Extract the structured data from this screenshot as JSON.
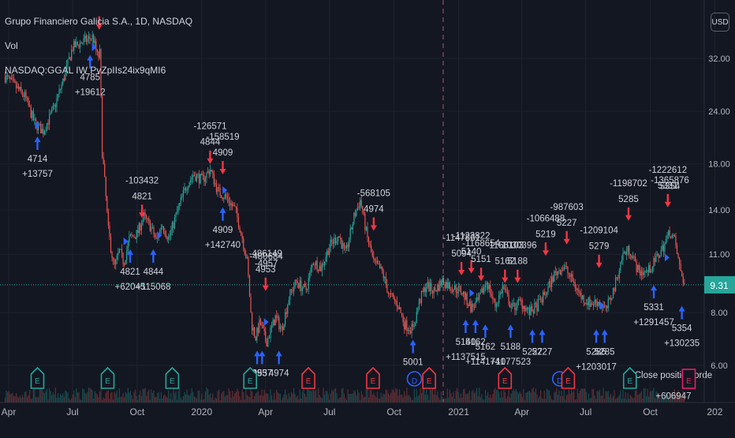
{
  "legend": {
    "symbol_line": "Grupo Financiero Galicia S.A., 1D, NASDAQ",
    "vol_label": "Vol",
    "script_line": "NASDAQ:GGAL IW PvZpIIs24ix9qMI6"
  },
  "currency_badge": "USD",
  "colors": {
    "background": "#131722",
    "up": "#26a69a",
    "down": "#ef5350",
    "buy_arrow": "#2962ff",
    "sell_arrow": "#f23645",
    "last_price": "#26a69a",
    "dividend": "#2962ff",
    "earnings_past": "#f23645",
    "earnings_future": "#e91e63"
  },
  "chart_data": {
    "type": "candlestick",
    "y_scale": "log",
    "y_ticks": [
      6.0,
      8.0,
      11.0,
      14.0,
      18.0,
      24.0,
      32.0
    ],
    "y_tick_labels": [
      "6.00",
      "8.00",
      "11.00",
      "14.00",
      "18.00",
      "24.00",
      "32.00"
    ],
    "x_tick_labels": [
      "Apr",
      "Jul",
      "Oct",
      "2020",
      "Apr",
      "Jul",
      "Oct",
      "2021",
      "Apr",
      "Jul",
      "Oct",
      "202"
    ],
    "last_price": "9.31",
    "price_path": [
      [
        "2019-03-27",
        29.0
      ],
      [
        "2019-04-10",
        27.5
      ],
      [
        "2019-04-24",
        26.0
      ],
      [
        "2019-05-08",
        22.5
      ],
      [
        "2019-05-20",
        21.5
      ],
      [
        "2019-06-05",
        24.5
      ],
      [
        "2019-06-18",
        28.5
      ],
      [
        "2019-07-01",
        34.0
      ],
      [
        "2019-07-15",
        35.0
      ],
      [
        "2019-07-30",
        36.0
      ],
      [
        "2019-08-06",
        32.0
      ],
      [
        "2019-08-09",
        33.0
      ],
      [
        "2019-08-12",
        19.5
      ],
      [
        "2019-08-15",
        17.0
      ],
      [
        "2019-08-21",
        12.5
      ],
      [
        "2019-08-29",
        10.2
      ],
      [
        "2019-09-06",
        11.2
      ],
      [
        "2019-09-12",
        10.5
      ],
      [
        "2019-09-20",
        12.0
      ],
      [
        "2019-10-01",
        12.3
      ],
      [
        "2019-10-10",
        13.5
      ],
      [
        "2019-10-20",
        12.8
      ],
      [
        "2019-10-29",
        11.8
      ],
      [
        "2019-11-05",
        13.0
      ],
      [
        "2019-11-15",
        12.0
      ],
      [
        "2019-11-28",
        14.0
      ],
      [
        "2019-12-10",
        16.0
      ],
      [
        "2019-12-20",
        17.0
      ],
      [
        "2020-01-02",
        16.5
      ],
      [
        "2020-01-13",
        17.5
      ],
      [
        "2020-01-24",
        15.5
      ],
      [
        "2020-02-05",
        15.0
      ],
      [
        "2020-02-18",
        14.0
      ],
      [
        "2020-02-28",
        12.0
      ],
      [
        "2020-03-06",
        10.5
      ],
      [
        "2020-03-12",
        7.5
      ],
      [
        "2020-03-18",
        7.0
      ],
      [
        "2020-03-24",
        7.6
      ],
      [
        "2020-04-02",
        6.8
      ],
      [
        "2020-04-15",
        7.8
      ],
      [
        "2020-04-24",
        7.3
      ],
      [
        "2020-05-05",
        8.8
      ],
      [
        "2020-05-15",
        9.5
      ],
      [
        "2020-05-28",
        9.0
      ],
      [
        "2020-06-08",
        10.6
      ],
      [
        "2020-06-19",
        10.2
      ],
      [
        "2020-07-01",
        11.5
      ],
      [
        "2020-07-14",
        12.2
      ],
      [
        "2020-07-24",
        11.0
      ],
      [
        "2020-08-05",
        13.5
      ],
      [
        "2020-08-14",
        14.8
      ],
      [
        "2020-08-24",
        12.0
      ],
      [
        "2020-09-02",
        10.5
      ],
      [
        "2020-09-14",
        10.0
      ],
      [
        "2020-09-24",
        8.8
      ],
      [
        "2020-10-06",
        8.4
      ],
      [
        "2020-10-16",
        7.5
      ],
      [
        "2020-10-28",
        7.3
      ],
      [
        "2020-11-06",
        8.5
      ],
      [
        "2020-11-16",
        9.3
      ],
      [
        "2020-11-27",
        9.0
      ],
      [
        "2020-12-09",
        9.5
      ],
      [
        "2020-12-22",
        9.2
      ],
      [
        "2021-01-05",
        9.0
      ],
      [
        "2021-01-19",
        8.2
      ],
      [
        "2021-01-29",
        8.5
      ],
      [
        "2021-02-10",
        9.5
      ],
      [
        "2021-02-22",
        8.3
      ],
      [
        "2021-03-05",
        9.2
      ],
      [
        "2021-03-18",
        8.2
      ],
      [
        "2021-03-30",
        8.5
      ],
      [
        "2021-04-12",
        8.0
      ],
      [
        "2021-04-23",
        8.3
      ],
      [
        "2021-05-05",
        8.9
      ],
      [
        "2021-05-18",
        9.9
      ],
      [
        "2021-05-31",
        10.3
      ],
      [
        "2021-06-11",
        9.6
      ],
      [
        "2021-06-25",
        8.7
      ],
      [
        "2021-07-08",
        8.4
      ],
      [
        "2021-07-19",
        8.5
      ],
      [
        "2021-07-30",
        8.1
      ],
      [
        "2021-08-11",
        9.2
      ],
      [
        "2021-08-23",
        11.0
      ],
      [
        "2021-09-02",
        11.3
      ],
      [
        "2021-09-14",
        10.0
      ],
      [
        "2021-09-27",
        10.0
      ],
      [
        "2021-10-08",
        10.6
      ],
      [
        "2021-10-20",
        11.5
      ],
      [
        "2021-10-29",
        12.5
      ],
      [
        "2021-11-05",
        11.8
      ],
      [
        "2021-11-12",
        10.2
      ],
      [
        "2021-11-19",
        9.31
      ]
    ],
    "signals": [
      {
        "date": "2019-05-12",
        "side": "buy",
        "price": 20.9,
        "id": "4714",
        "profit": "+13757"
      },
      {
        "date": "2019-07-26",
        "side": "buy",
        "price": 32.6,
        "id": "4785",
        "profit": "+19612"
      },
      {
        "date": "2019-08-08",
        "side": "sell",
        "price": 37.4,
        "id": "",
        "profit": ""
      },
      {
        "date": "2019-10-08",
        "side": "sell",
        "price": 13.4,
        "id": "4821",
        "profit": "-103432"
      },
      {
        "date": "2019-09-21",
        "side": "buy",
        "price": 11.3,
        "id": "4821",
        "profit": "+62045"
      },
      {
        "date": "2019-10-24",
        "side": "buy",
        "price": 11.3,
        "id": "4844",
        "profit": "+115068"
      },
      {
        "date": "2020-01-13",
        "side": "sell",
        "price": 18.0,
        "id": "4844",
        "profit": "-126571"
      },
      {
        "date": "2020-01-31",
        "side": "sell",
        "price": 17.0,
        "id": "4909",
        "profit": "-158519"
      },
      {
        "date": "2020-01-31",
        "side": "buy",
        "price": 14.2,
        "id": "4909",
        "profit": "+142740"
      },
      {
        "date": "2020-04-01",
        "side": "sell",
        "price": 9.0,
        "id": "4953",
        "profit": "-486149"
      },
      {
        "date": "2020-03-20",
        "side": "buy",
        "price": 6.5,
        "id": "4953",
        "profit": ""
      },
      {
        "date": "2020-03-27",
        "side": "buy",
        "price": 6.5,
        "id": "4957",
        "profit": ""
      },
      {
        "date": "2020-04-20",
        "side": "buy",
        "price": 6.5,
        "id": "4974",
        "profit": ""
      },
      {
        "date": "2020-09-02",
        "side": "sell",
        "price": 12.5,
        "id": "4974",
        "profit": "-568105"
      },
      {
        "date": "2020-10-28",
        "side": "buy",
        "price": 6.9,
        "id": "5001",
        "profit": ""
      },
      {
        "date": "2021-01-05",
        "side": "sell",
        "price": 9.8,
        "id": "5094",
        "profit": "-1147861"
      },
      {
        "date": "2021-01-19",
        "side": "sell",
        "price": 9.9,
        "id": "5140",
        "profit": "-1123822"
      },
      {
        "date": "2021-02-02",
        "side": "sell",
        "price": 9.5,
        "id": "5151",
        "profit": "-1168654"
      },
      {
        "date": "2021-03-08",
        "side": "sell",
        "price": 9.4,
        "id": "5162",
        "profit": "-1156103"
      },
      {
        "date": "2021-03-26",
        "side": "sell",
        "price": 9.4,
        "id": "5188",
        "profit": "-1030396"
      },
      {
        "date": "2021-05-05",
        "side": "sell",
        "price": 10.9,
        "id": "5219",
        "profit": "-1066488"
      },
      {
        "date": "2021-06-04",
        "side": "sell",
        "price": 11.6,
        "id": "5227",
        "profit": "-987603"
      },
      {
        "date": "2021-07-20",
        "side": "sell",
        "price": 10.2,
        "id": "5279",
        "profit": "-1209104"
      },
      {
        "date": "2021-08-31",
        "side": "sell",
        "price": 13.2,
        "id": "5285",
        "profit": "-1198702"
      },
      {
        "date": "2021-10-26",
        "side": "sell",
        "price": 14.2,
        "id": "5331",
        "profit": "-1222612"
      },
      {
        "date": "2021-01-11",
        "side": "buy",
        "price": 7.7,
        "id": "5140",
        "profit": "+1137515"
      },
      {
        "date": "2021-01-25",
        "side": "buy",
        "price": 7.7,
        "id": "5162",
        "profit": ""
      },
      {
        "date": "2021-02-08",
        "side": "buy",
        "price": 7.5,
        "id": "5162",
        "profit": "+1141741"
      },
      {
        "date": "2021-03-16",
        "side": "buy",
        "price": 7.5,
        "id": "5188",
        "profit": "+1077523"
      },
      {
        "date": "2021-04-16",
        "side": "buy",
        "price": 7.3,
        "id": "5227",
        "profit": ""
      },
      {
        "date": "2021-04-30",
        "side": "buy",
        "price": 7.3,
        "id": "5227",
        "profit": ""
      },
      {
        "date": "2021-07-16",
        "side": "buy",
        "price": 7.3,
        "id": "5285",
        "profit": "+1203017"
      },
      {
        "date": "2021-07-28",
        "side": "buy",
        "price": 7.3,
        "id": "5285",
        "profit": ""
      },
      {
        "date": "2021-10-06",
        "side": "buy",
        "price": 9.3,
        "id": "5331",
        "profit": "+1291457"
      },
      {
        "date": "2021-11-15",
        "side": "buy",
        "price": 8.3,
        "id": "5354",
        "profit": "+130235"
      }
    ],
    "entry_markers": [
      {
        "date": "2019-05-12",
        "price": 22.2
      },
      {
        "date": "2019-08-01",
        "price": 34.0
      },
      {
        "date": "2019-09-15",
        "price": 11.8
      },
      {
        "date": "2019-11-02",
        "price": 12.2
      },
      {
        "date": "2020-02-03",
        "price": 15.6
      },
      {
        "date": "2020-04-02",
        "price": 7.6
      },
      {
        "date": "2021-01-20",
        "price": 8.9
      },
      {
        "date": "2021-07-25",
        "price": 8.3
      },
      {
        "date": "2021-10-25",
        "price": 10.8
      }
    ],
    "loose_labels": [
      {
        "date": "2020-04-02",
        "price": 10.7,
        "text": "-480684"
      },
      {
        "date": "2020-04-02",
        "price": 10.3,
        "text": "-4957"
      },
      {
        "date": "2021-10-29",
        "price": 16.2,
        "text": "-1365876"
      },
      {
        "date": "2021-10-29",
        "price": 15.7,
        "text": "5354"
      },
      {
        "date": "2021-11-03",
        "price": 5.6,
        "text": "Close position orde"
      },
      {
        "date": "2021-11-03",
        "price": 5.0,
        "text": "+606947"
      }
    ],
    "events": [
      {
        "date": "2019-05-12",
        "type": "E",
        "kind": "earnings"
      },
      {
        "date": "2019-08-20",
        "type": "E",
        "kind": "earnings"
      },
      {
        "date": "2019-11-20",
        "type": "E",
        "kind": "earnings"
      },
      {
        "date": "2020-03-10",
        "type": "E",
        "kind": "earnings"
      },
      {
        "date": "2020-06-01",
        "type": "E",
        "kind": "earnings-past"
      },
      {
        "date": "2020-09-01",
        "type": "E",
        "kind": "earnings-past"
      },
      {
        "date": "2020-10-30",
        "type": "D",
        "kind": "dividend"
      },
      {
        "date": "2020-11-20",
        "type": "E",
        "kind": "earnings-past"
      },
      {
        "date": "2021-03-08",
        "type": "E",
        "kind": "earnings-past"
      },
      {
        "date": "2021-05-25",
        "type": "D",
        "kind": "dividend"
      },
      {
        "date": "2021-06-06",
        "type": "E",
        "kind": "earnings-past"
      },
      {
        "date": "2021-09-02",
        "type": "E",
        "kind": "earnings"
      },
      {
        "date": "2021-11-25",
        "type": "E",
        "kind": "earnings-future"
      }
    ],
    "divider_date": "2020-12-10",
    "grid": true
  }
}
